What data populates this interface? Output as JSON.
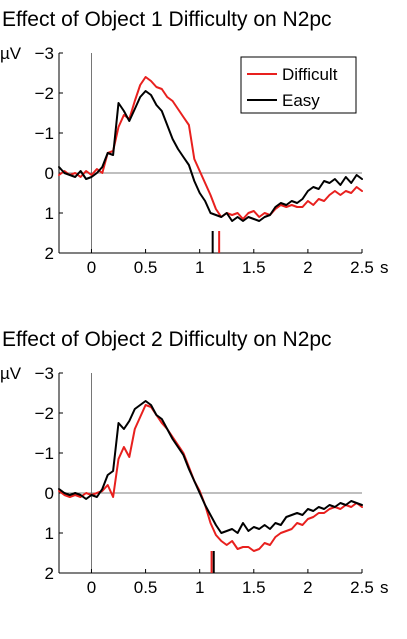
{
  "chart_data": [
    {
      "type": "line",
      "title": "Effect of Object 1 Difficulty on N2pc",
      "unit_label": "µV",
      "x_unit": "s",
      "xlim": [
        -0.3,
        2.5
      ],
      "ylim": [
        2,
        -3
      ],
      "y_axis_inverted": true,
      "x_ticks": [
        0,
        0.5,
        1,
        1.5,
        2,
        2.5
      ],
      "x_tick_labels": [
        "0",
        "0.5",
        "1",
        "1.5",
        "2",
        "2.5"
      ],
      "y_ticks": [
        -3,
        -2,
        -1,
        0,
        1,
        2
      ],
      "y_tick_labels": [
        "−3",
        "−2",
        "−1",
        "0",
        "1",
        "2"
      ],
      "grid": false,
      "legend_position": "top-right",
      "series": [
        {
          "name": "Difficult",
          "color": "#e8201e",
          "x": [
            -0.3,
            -0.25,
            -0.2,
            -0.15,
            -0.1,
            -0.05,
            0.0,
            0.05,
            0.1,
            0.15,
            0.2,
            0.25,
            0.3,
            0.35,
            0.4,
            0.45,
            0.5,
            0.55,
            0.6,
            0.65,
            0.7,
            0.75,
            0.8,
            0.85,
            0.9,
            0.95,
            1.0,
            1.05,
            1.1,
            1.15,
            1.2,
            1.25,
            1.3,
            1.35,
            1.4,
            1.45,
            1.5,
            1.55,
            1.6,
            1.65,
            1.7,
            1.75,
            1.8,
            1.85,
            1.9,
            1.95,
            2.0,
            2.05,
            2.1,
            2.15,
            2.2,
            2.25,
            2.3,
            2.35,
            2.4,
            2.45,
            2.5
          ],
          "values": [
            0.05,
            -0.05,
            0.05,
            0.0,
            0.1,
            -0.05,
            0.05,
            -0.1,
            0.0,
            -0.5,
            -0.55,
            -1.15,
            -1.45,
            -1.35,
            -1.8,
            -2.2,
            -2.4,
            -2.3,
            -2.15,
            -2.1,
            -1.9,
            -1.8,
            -1.6,
            -1.4,
            -1.2,
            -0.35,
            -0.05,
            0.25,
            0.55,
            0.9,
            1.1,
            1.0,
            1.05,
            1.0,
            1.15,
            1.0,
            0.95,
            1.1,
            1.0,
            1.05,
            0.9,
            0.8,
            0.85,
            0.8,
            0.85,
            0.85,
            0.7,
            0.8,
            0.65,
            0.7,
            0.55,
            0.45,
            0.55,
            0.45,
            0.5,
            0.35,
            0.45
          ]
        },
        {
          "name": "Easy",
          "color": "#000000",
          "x": [
            -0.3,
            -0.25,
            -0.2,
            -0.15,
            -0.1,
            -0.05,
            0.0,
            0.05,
            0.1,
            0.15,
            0.2,
            0.25,
            0.3,
            0.35,
            0.4,
            0.45,
            0.5,
            0.55,
            0.6,
            0.65,
            0.7,
            0.75,
            0.8,
            0.85,
            0.9,
            0.95,
            1.0,
            1.05,
            1.1,
            1.15,
            1.2,
            1.25,
            1.3,
            1.35,
            1.4,
            1.45,
            1.5,
            1.55,
            1.6,
            1.65,
            1.7,
            1.75,
            1.8,
            1.85,
            1.9,
            1.95,
            2.0,
            2.05,
            2.1,
            2.15,
            2.2,
            2.25,
            2.3,
            2.35,
            2.4,
            2.45,
            2.5
          ],
          "values": [
            -0.15,
            0.0,
            0.05,
            0.1,
            -0.05,
            0.15,
            0.1,
            0.0,
            -0.15,
            -0.5,
            -0.45,
            -1.75,
            -1.55,
            -1.3,
            -1.6,
            -1.9,
            -2.05,
            -1.95,
            -1.7,
            -1.55,
            -1.2,
            -0.85,
            -0.6,
            -0.4,
            -0.2,
            0.2,
            0.5,
            0.7,
            1.0,
            1.05,
            1.1,
            1.0,
            1.2,
            1.1,
            1.2,
            1.1,
            1.15,
            1.2,
            1.1,
            1.05,
            0.85,
            0.75,
            0.8,
            0.7,
            0.75,
            0.65,
            0.45,
            0.35,
            0.4,
            0.2,
            0.25,
            0.15,
            0.3,
            0.1,
            0.25,
            0.05,
            0.15
          ]
        }
      ],
      "markers": [
        {
          "x": 1.12,
          "color": "#000000"
        },
        {
          "x": 1.18,
          "color": "#e8201e"
        }
      ]
    },
    {
      "type": "line",
      "title": "Effect of Object 2 Difficulty on N2pc",
      "unit_label": "µV",
      "x_unit": "s",
      "xlim": [
        -0.3,
        2.5
      ],
      "ylim": [
        2,
        -3
      ],
      "y_axis_inverted": true,
      "x_ticks": [
        0,
        0.5,
        1,
        1.5,
        2,
        2.5
      ],
      "x_tick_labels": [
        "0",
        "0.5",
        "1",
        "1.5",
        "2",
        "2.5"
      ],
      "y_ticks": [
        -3,
        -2,
        -1,
        0,
        1,
        2
      ],
      "y_tick_labels": [
        "−3",
        "−2",
        "−1",
        "0",
        "1",
        "2"
      ],
      "grid": false,
      "series": [
        {
          "name": "Difficult",
          "color": "#e8201e",
          "x": [
            -0.3,
            -0.25,
            -0.2,
            -0.15,
            -0.1,
            -0.05,
            0.0,
            0.05,
            0.1,
            0.15,
            0.2,
            0.25,
            0.3,
            0.35,
            0.4,
            0.45,
            0.5,
            0.55,
            0.6,
            0.65,
            0.7,
            0.75,
            0.8,
            0.85,
            0.9,
            0.95,
            1.0,
            1.05,
            1.1,
            1.15,
            1.2,
            1.25,
            1.3,
            1.35,
            1.4,
            1.45,
            1.5,
            1.55,
            1.6,
            1.65,
            1.7,
            1.75,
            1.8,
            1.85,
            1.9,
            1.95,
            2.0,
            2.05,
            2.1,
            2.15,
            2.2,
            2.25,
            2.3,
            2.35,
            2.4,
            2.45,
            2.5
          ],
          "values": [
            -0.05,
            0.05,
            0.1,
            0.05,
            0.1,
            0.0,
            0.05,
            0.0,
            -0.05,
            -0.2,
            0.1,
            -0.85,
            -1.15,
            -0.9,
            -1.6,
            -1.9,
            -2.2,
            -2.15,
            -1.95,
            -1.75,
            -1.6,
            -1.4,
            -1.2,
            -1.0,
            -0.65,
            -0.3,
            -0.05,
            0.3,
            0.75,
            1.05,
            1.2,
            1.3,
            1.2,
            1.4,
            1.35,
            1.35,
            1.45,
            1.4,
            1.25,
            1.3,
            1.1,
            1.0,
            0.95,
            0.9,
            0.75,
            0.8,
            0.65,
            0.6,
            0.5,
            0.5,
            0.4,
            0.35,
            0.4,
            0.3,
            0.35,
            0.25,
            0.35
          ]
        },
        {
          "name": "Easy",
          "color": "#000000",
          "x": [
            -0.3,
            -0.25,
            -0.2,
            -0.15,
            -0.1,
            -0.05,
            0.0,
            0.05,
            0.1,
            0.15,
            0.2,
            0.25,
            0.3,
            0.35,
            0.4,
            0.45,
            0.5,
            0.55,
            0.6,
            0.65,
            0.7,
            0.75,
            0.8,
            0.85,
            0.9,
            0.95,
            1.0,
            1.05,
            1.1,
            1.15,
            1.2,
            1.25,
            1.3,
            1.35,
            1.4,
            1.45,
            1.5,
            1.55,
            1.6,
            1.65,
            1.7,
            1.75,
            1.8,
            1.85,
            1.9,
            1.95,
            2.0,
            2.05,
            2.1,
            2.15,
            2.2,
            2.25,
            2.3,
            2.35,
            2.4,
            2.45,
            2.5
          ],
          "values": [
            -0.1,
            0.0,
            0.05,
            0.0,
            0.05,
            0.15,
            0.05,
            0.1,
            -0.1,
            -0.45,
            -0.55,
            -1.75,
            -1.6,
            -1.8,
            -2.1,
            -2.2,
            -2.3,
            -2.2,
            -1.95,
            -1.85,
            -1.6,
            -1.35,
            -1.15,
            -0.95,
            -0.6,
            -0.3,
            0.0,
            0.3,
            0.55,
            0.8,
            1.0,
            0.95,
            0.9,
            1.0,
            0.75,
            0.95,
            0.85,
            0.9,
            0.8,
            0.9,
            0.75,
            0.8,
            0.6,
            0.55,
            0.5,
            0.55,
            0.4,
            0.45,
            0.35,
            0.4,
            0.3,
            0.35,
            0.25,
            0.3,
            0.2,
            0.25,
            0.3
          ]
        }
      ],
      "markers": [
        {
          "x": 1.11,
          "color": "#e8201e"
        },
        {
          "x": 1.13,
          "color": "#000000"
        }
      ]
    }
  ]
}
